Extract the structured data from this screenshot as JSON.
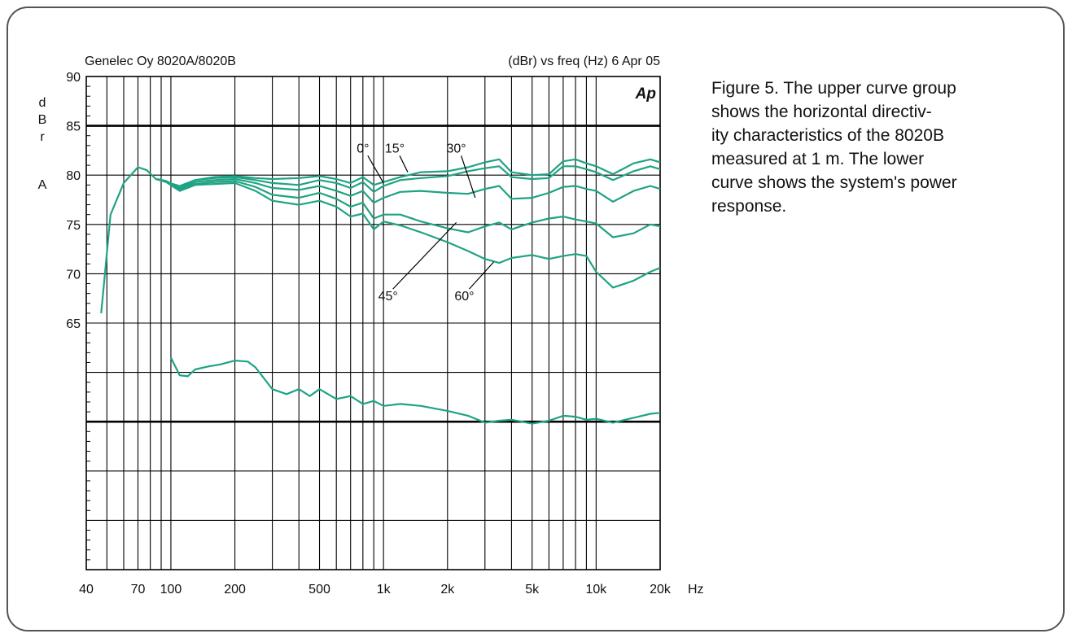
{
  "header": {
    "left": "Genelec Oy 8020A/8020B",
    "right": "(dBr) vs freq (Hz) 6 Apr 05",
    "logo": "Ap"
  },
  "caption": "Figure 5. The upper curve group\nshows the  horizontal directiv-\nity characteristics of the 8020B\nmeasured  at  1  m. The  lower\ncurve shows the system's power\nresponse.",
  "colors": {
    "curve": "#1fa384",
    "grid": "#000000",
    "frame": "#555555"
  },
  "chart_data": {
    "type": "line",
    "x_scale": "log",
    "xlim": [
      40,
      20000
    ],
    "ylim": [
      40,
      90
    ],
    "grid": true,
    "ylabel": [
      "d",
      "B",
      "r",
      "",
      "A"
    ],
    "xunit": "Hz",
    "y_ticks": [
      {
        "value": 90,
        "label": "90"
      },
      {
        "value": 85,
        "label": "85"
      },
      {
        "value": 80,
        "label": "80"
      },
      {
        "value": 75,
        "label": "75"
      },
      {
        "value": 70,
        "label": "70"
      },
      {
        "value": 65,
        "label": "65"
      }
    ],
    "x_ticks": [
      {
        "value": 40,
        "label": "40"
      },
      {
        "value": 70,
        "label": "70"
      },
      {
        "value": 100,
        "label": "100"
      },
      {
        "value": 200,
        "label": "200"
      },
      {
        "value": 500,
        "label": "500"
      },
      {
        "value": 1000,
        "label": "1k"
      },
      {
        "value": 2000,
        "label": "2k"
      },
      {
        "value": 5000,
        "label": "5k"
      },
      {
        "value": 10000,
        "label": "10k"
      },
      {
        "value": 20000,
        "label": "20k"
      }
    ],
    "annotations": [
      {
        "text": "0°",
        "x": 800,
        "y": 82.3,
        "line_to": [
          1000,
          79.2
        ]
      },
      {
        "text": "15°",
        "x": 1130,
        "y": 82.3,
        "line_to": [
          1300,
          80.3
        ]
      },
      {
        "text": "30°",
        "x": 2200,
        "y": 82.3,
        "line_to": [
          2700,
          77.7
        ]
      },
      {
        "text": "45°",
        "x": 1050,
        "y": 67.3,
        "line_to": [
          2200,
          75.2
        ]
      },
      {
        "text": "60°",
        "x": 2400,
        "y": 67.3,
        "line_to": [
          3300,
          71.2
        ]
      }
    ],
    "series": [
      {
        "name": "0°",
        "x": [
          47,
          52,
          60,
          70,
          77,
          85,
          95,
          110,
          130,
          160,
          200,
          250,
          300,
          400,
          500,
          600,
          700,
          800,
          900,
          1000,
          1200,
          1500,
          2000,
          2500,
          3000,
          3500,
          4000,
          5000,
          6000,
          7000,
          8000,
          9000,
          10000,
          12000,
          15000,
          18000,
          20000
        ],
        "y": [
          66,
          76,
          79.2,
          80.8,
          80.5,
          79.6,
          79.3,
          78.9,
          79.5,
          79.8,
          79.9,
          79.7,
          79.6,
          79.7,
          79.9,
          79.6,
          79.2,
          79.8,
          79,
          79.3,
          79.8,
          80.3,
          80.4,
          80.8,
          81.3,
          81.6,
          80.3,
          80,
          80.1,
          81.4,
          81.6,
          81.2,
          80.9,
          80.1,
          81.2,
          81.6,
          81.3
        ]
      },
      {
        "name": "15°",
        "x": [
          85,
          95,
          110,
          130,
          160,
          200,
          250,
          300,
          400,
          500,
          600,
          700,
          800,
          900,
          1000,
          1200,
          1500,
          2000,
          2500,
          3000,
          3500,
          4000,
          5000,
          6000,
          7000,
          8000,
          9000,
          10000,
          12000,
          15000,
          18000,
          20000
        ],
        "y": [
          79.6,
          79.4,
          78.7,
          79.5,
          79.7,
          79.8,
          79.5,
          79.2,
          79,
          79.5,
          79.2,
          78.7,
          79.3,
          78.3,
          78.9,
          79.5,
          79.7,
          79.9,
          80.4,
          80.7,
          80.9,
          79.8,
          79.6,
          79.7,
          80.9,
          80.9,
          80.6,
          80.3,
          79.5,
          80.4,
          80.9,
          80.6
        ]
      },
      {
        "name": "30°",
        "x": [
          85,
          95,
          110,
          130,
          160,
          200,
          250,
          300,
          400,
          500,
          600,
          700,
          800,
          900,
          1000,
          1200,
          1500,
          2000,
          2500,
          3000,
          3500,
          4000,
          5000,
          6000,
          7000,
          8000,
          9000,
          10000,
          12000,
          15000,
          18000,
          20000
        ],
        "y": [
          79.6,
          79.4,
          78.6,
          79.3,
          79.5,
          79.6,
          79.2,
          78.7,
          78.5,
          78.9,
          78.4,
          77.9,
          78.4,
          77.2,
          77.7,
          78.3,
          78.4,
          78.2,
          78.1,
          78.6,
          78.9,
          77.6,
          77.7,
          78.2,
          78.8,
          78.9,
          78.6,
          78.4,
          77.3,
          78.4,
          78.9,
          78.6
        ]
      },
      {
        "name": "45°",
        "x": [
          85,
          95,
          110,
          130,
          160,
          200,
          250,
          300,
          400,
          500,
          600,
          700,
          800,
          900,
          1000,
          1200,
          1500,
          2000,
          2500,
          3000,
          3500,
          4000,
          5000,
          6000,
          7000,
          8000,
          9000,
          10000,
          12000,
          15000,
          18000,
          20000
        ],
        "y": [
          79.6,
          79.4,
          78.5,
          79.1,
          79.3,
          79.4,
          78.8,
          78,
          77.7,
          78.2,
          77.6,
          76.8,
          77.2,
          75.6,
          76,
          76,
          75.3,
          74.6,
          74.2,
          74.8,
          75.2,
          74.5,
          75.2,
          75.6,
          75.8,
          75.5,
          75.3,
          75.1,
          73.7,
          74.1,
          75,
          74.8
        ]
      },
      {
        "name": "60°",
        "x": [
          85,
          95,
          110,
          130,
          160,
          200,
          250,
          300,
          400,
          500,
          600,
          700,
          800,
          900,
          1000,
          1200,
          1500,
          2000,
          2500,
          3000,
          3500,
          4000,
          5000,
          6000,
          7000,
          8000,
          9000,
          10000,
          12000,
          15000,
          18000,
          20000
        ],
        "y": [
          79.6,
          79.3,
          78.4,
          79,
          79.1,
          79.2,
          78.4,
          77.4,
          77,
          77.4,
          76.8,
          75.8,
          76.1,
          74.5,
          75.3,
          74.9,
          74.2,
          73.2,
          72.3,
          71.5,
          71.1,
          71.6,
          71.9,
          71.5,
          71.8,
          72,
          71.8,
          70.2,
          68.6,
          69.3,
          70.2,
          70.6
        ]
      },
      {
        "name": "",
        "x": [
          100,
          110,
          120,
          130,
          150,
          170,
          200,
          230,
          250,
          300,
          350,
          400,
          450,
          500,
          600,
          700,
          800,
          900,
          1000,
          1200,
          1500,
          2000,
          2500,
          3000,
          3500,
          4000,
          5000,
          6000,
          7000,
          8000,
          9000,
          10000,
          12000,
          15000,
          18000,
          20000
        ],
        "y": [
          61.5,
          59.7,
          59.6,
          60.3,
          60.6,
          60.8,
          61.2,
          61.1,
          60.5,
          58.3,
          57.8,
          58.3,
          57.6,
          58.3,
          57.3,
          57.6,
          56.8,
          57.1,
          56.6,
          56.8,
          56.6,
          56.1,
          55.6,
          54.9,
          55.1,
          55.2,
          54.8,
          55.1,
          55.6,
          55.5,
          55.2,
          55.3,
          54.9,
          55.4,
          55.8,
          55.9
        ]
      }
    ]
  }
}
